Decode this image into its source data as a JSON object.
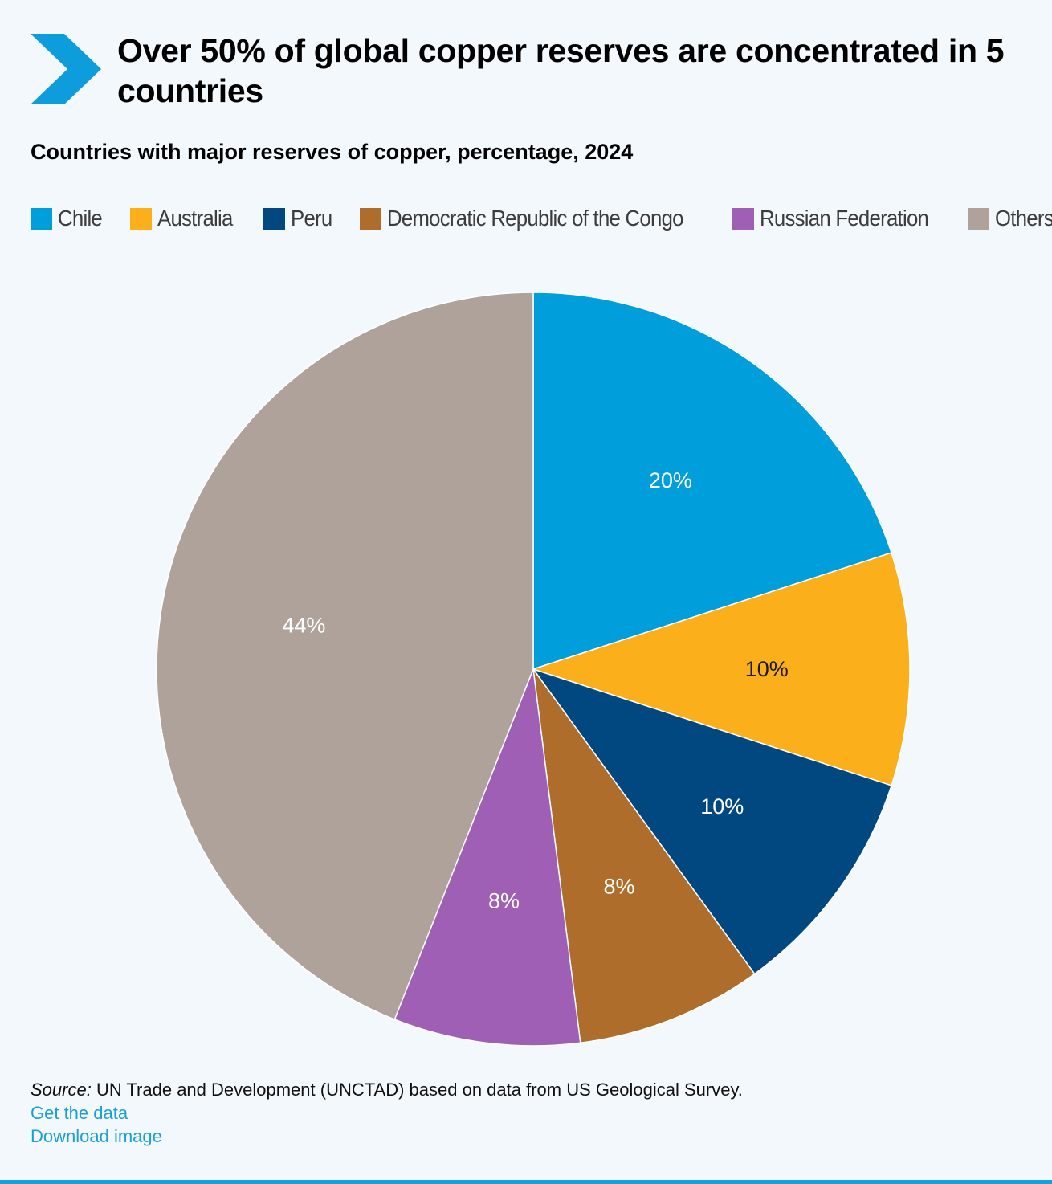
{
  "header": {
    "title": "Over 50% of global copper reserves are concentrated in 5 countries",
    "accent_color": "#0e9ddc"
  },
  "chart_data": {
    "type": "pie",
    "title": "Over 50% of global copper reserves are concentrated in 5 countries",
    "subtitle": "Countries with major reserves of copper, percentage, 2024",
    "legend_position": "top",
    "slices": [
      {
        "name": "Chile",
        "value": 20,
        "label": "20%",
        "color": "#009edb",
        "label_color": "#ffffff"
      },
      {
        "name": "Australia",
        "value": 10,
        "label": "10%",
        "color": "#fbaf1a",
        "label_color": "#1a1a1a"
      },
      {
        "name": "Peru",
        "value": 10,
        "label": "10%",
        "color": "#00487f",
        "label_color": "#ffffff"
      },
      {
        "name": "Democratic Republic of the Congo",
        "value": 8,
        "label": "8%",
        "color": "#ae6d2b",
        "label_color": "#ffffff"
      },
      {
        "name": "Russian Federation",
        "value": 8,
        "label": "8%",
        "color": "#9f5fb5",
        "label_color": "#ffffff"
      },
      {
        "name": "Others",
        "value": 44,
        "label": "44%",
        "color": "#aea29a",
        "label_color": "#ffffff"
      }
    ]
  },
  "footer": {
    "source_label": "Source:",
    "source_text": " UN Trade and Development (UNCTAD) based on data from US Geological Survey.",
    "get_data_link": "Get the data",
    "download_link": "Download image",
    "link_color": "#1a9fd8"
  }
}
